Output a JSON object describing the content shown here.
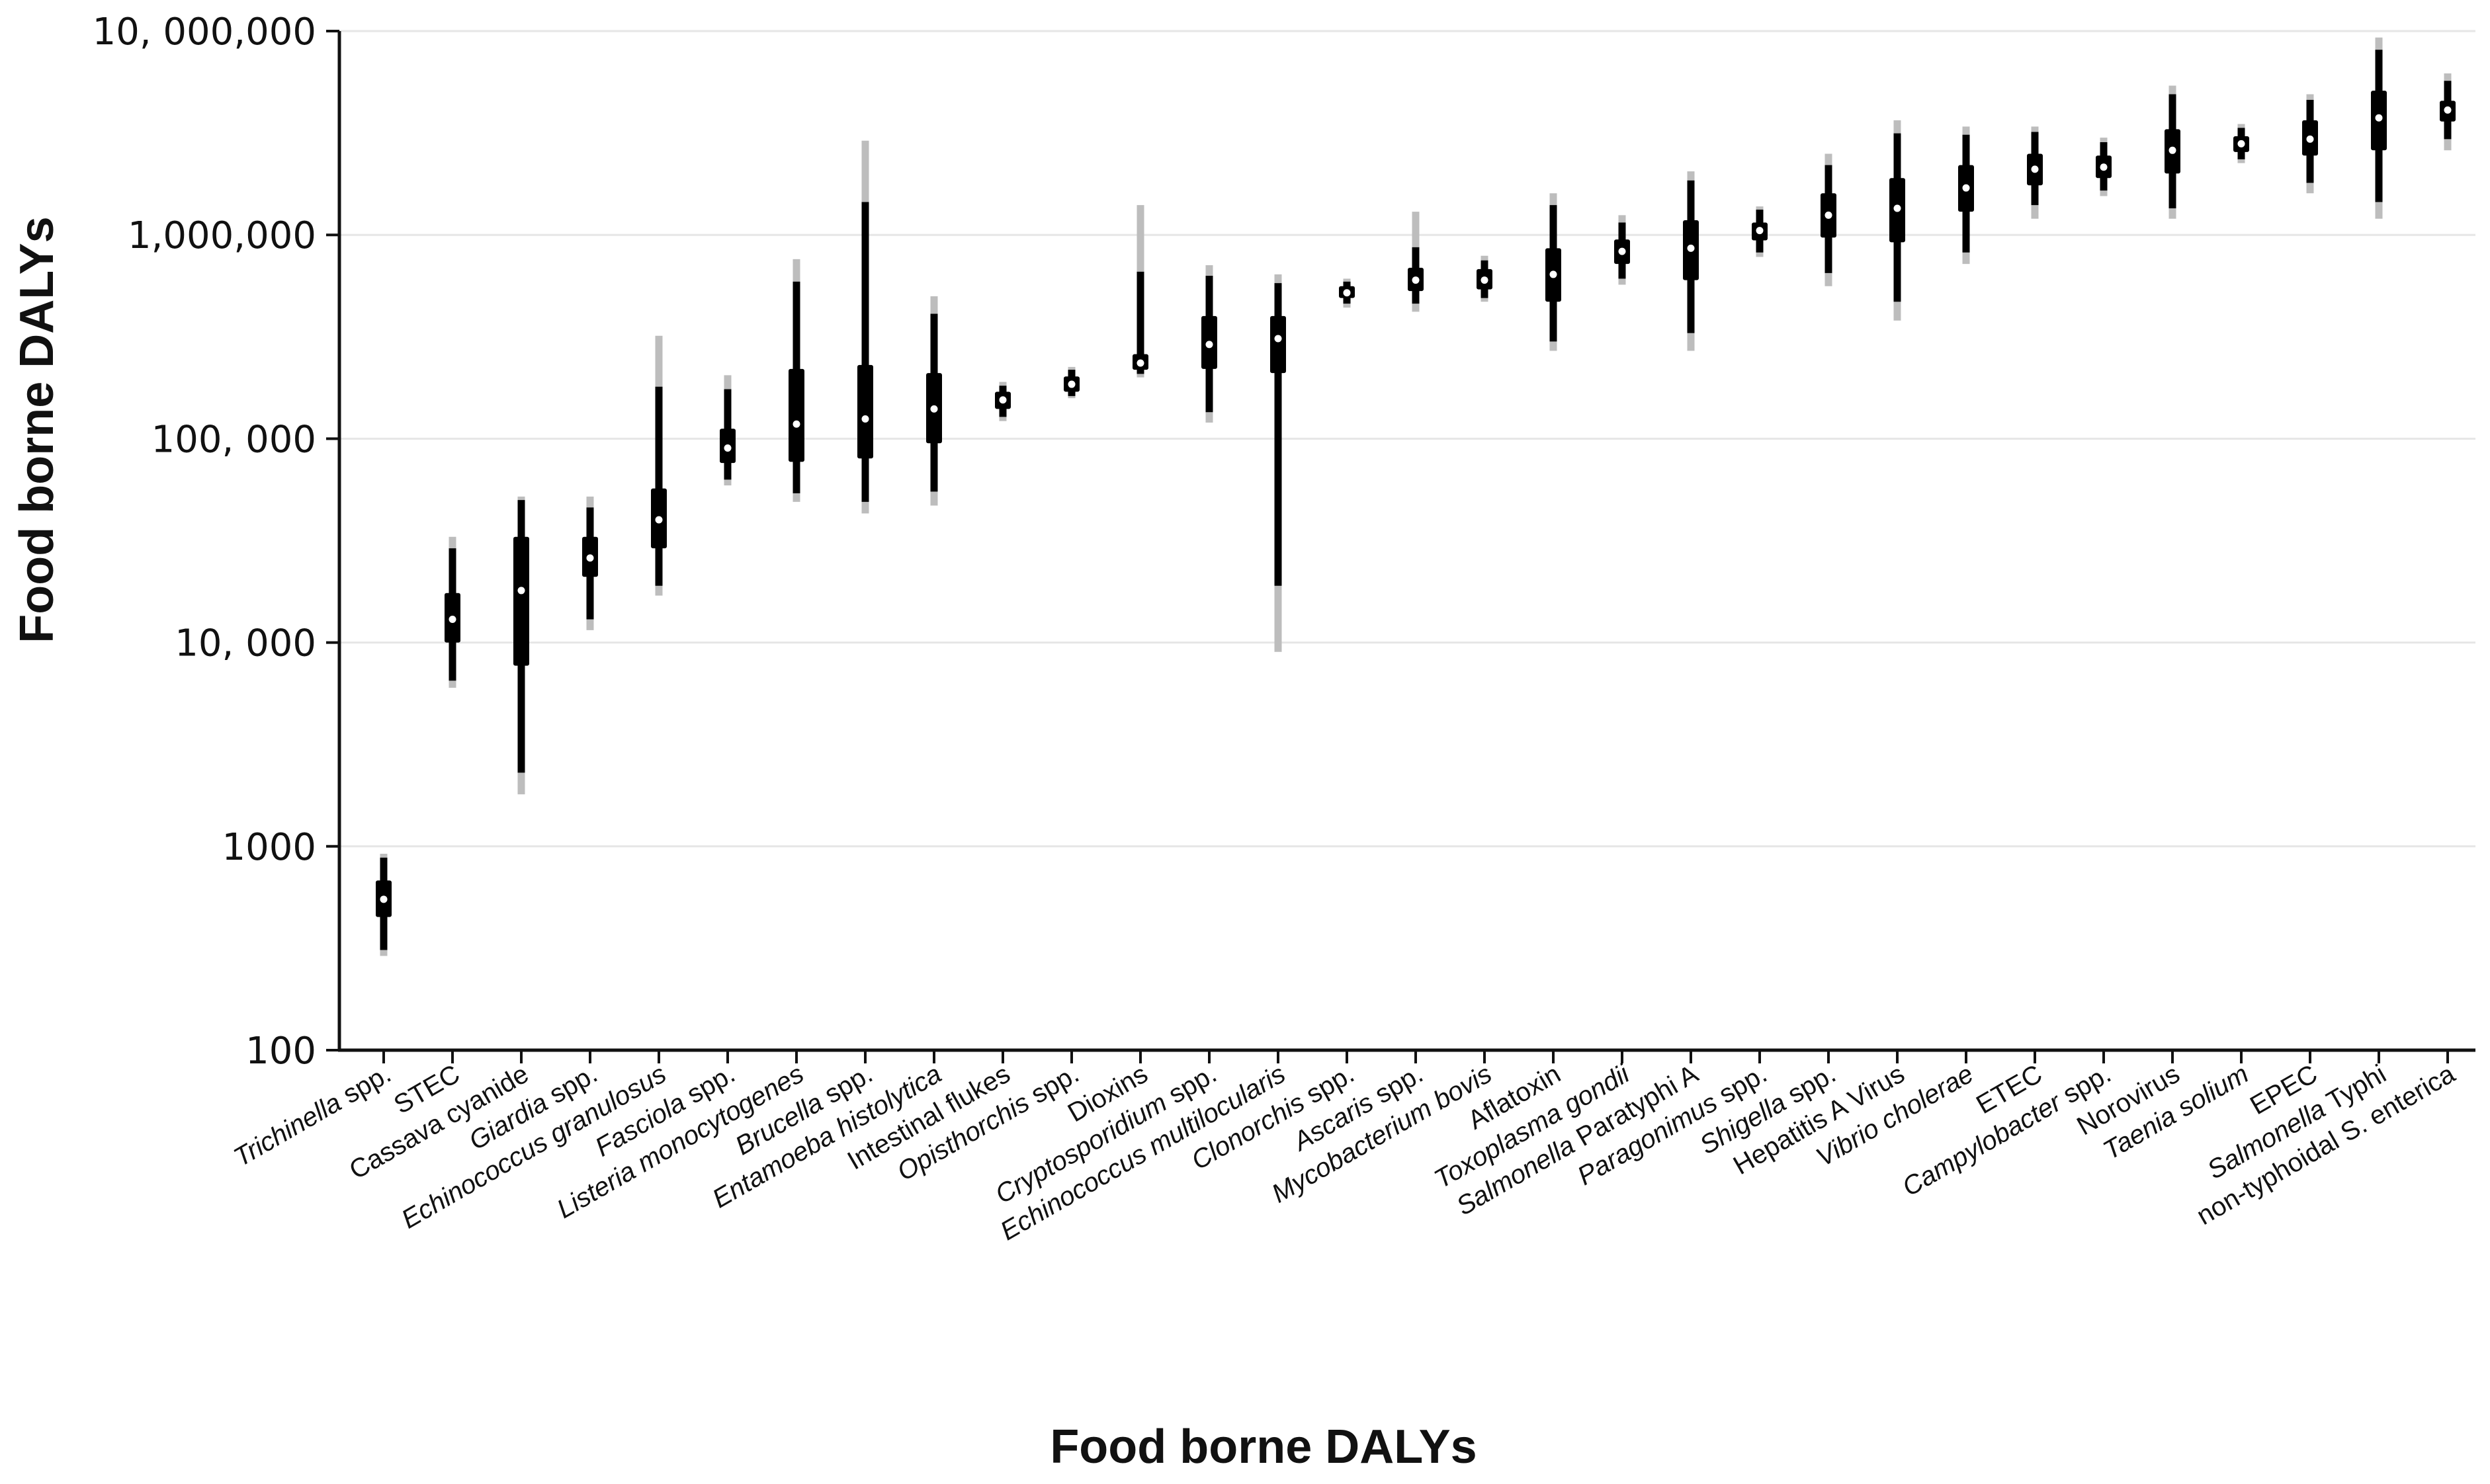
{
  "chart_data": {
    "type": "interval",
    "title": "",
    "xlabel": "Food borne DALYs",
    "ylabel": "Food borne DALYs",
    "yscale": "log",
    "ylim": [
      100,
      10000000
    ],
    "grid": "horizontal",
    "yticks": [
      {
        "value": 100,
        "label": "100"
      },
      {
        "value": 1000,
        "label": "1000"
      },
      {
        "value": 10000,
        "label": "10, 000"
      },
      {
        "value": 100000,
        "label": "100, 000"
      },
      {
        "value": 1000000,
        "label": "1,000,000"
      },
      {
        "value": 10000000,
        "label": "10, 000,000"
      }
    ],
    "categories": [
      {
        "label": "Trichinella spp.",
        "italic_prefix": "Trichinella",
        "suffix": " spp.",
        "median": 550,
        "q1": 450,
        "q3": 680,
        "i80lo": 310,
        "i80hi": 880,
        "i95lo": 290,
        "i95hi": 920
      },
      {
        "label": "STEC",
        "italic_prefix": "",
        "suffix": "STEC",
        "median": 13000,
        "q1": 10000,
        "q3": 17500,
        "i80lo": 6500,
        "i80hi": 29000,
        "i95lo": 6000,
        "i95hi": 33000
      },
      {
        "label": "Cassava cyanide",
        "italic_prefix": "",
        "suffix": "Cassava cyanide",
        "median": 18000,
        "q1": 7700,
        "q3": 33000,
        "i80lo": 2300,
        "i80hi": 50000,
        "i95lo": 1800,
        "i95hi": 52000
      },
      {
        "label": "Giardia spp.",
        "italic_prefix": "Giardia",
        "suffix": " spp.",
        "median": 26000,
        "q1": 21000,
        "q3": 33000,
        "i80lo": 13000,
        "i80hi": 46000,
        "i95lo": 11500,
        "i95hi": 52000
      },
      {
        "label": "Echinococcus granulosus",
        "italic_prefix": "Echinococcus granulosus",
        "suffix": "",
        "median": 40000,
        "q1": 29000,
        "q3": 57000,
        "i80lo": 19000,
        "i80hi": 180000,
        "i95lo": 17000,
        "i95hi": 320000
      },
      {
        "label": "Fasciola spp.",
        "italic_prefix": "Fasciola",
        "suffix": " spp.",
        "median": 90000,
        "q1": 76000,
        "q3": 112000,
        "i80lo": 63000,
        "i80hi": 175000,
        "i95lo": 59000,
        "i95hi": 205000
      },
      {
        "label": "Listeria monocytogenes",
        "italic_prefix": "Listeria monocytogenes",
        "suffix": "",
        "median": 118000,
        "q1": 77000,
        "q3": 220000,
        "i80lo": 54000,
        "i80hi": 590000,
        "i95lo": 49000,
        "i95hi": 760000
      },
      {
        "label": "Brucella spp.",
        "italic_prefix": "Brucella",
        "suffix": " spp.",
        "median": 125000,
        "q1": 80000,
        "q3": 230000,
        "i80lo": 49000,
        "i80hi": 1450000,
        "i95lo": 43000,
        "i95hi": 2900000
      },
      {
        "label": "Entamoeba histolytica",
        "italic_prefix": "Entamoeba histolytica",
        "suffix": "",
        "median": 140000,
        "q1": 95000,
        "q3": 210000,
        "i80lo": 55000,
        "i80hi": 410000,
        "i95lo": 47000,
        "i95hi": 500000
      },
      {
        "label": "Intestinal flukes",
        "italic_prefix": "",
        "suffix": "Intestinal flukes",
        "median": 155000,
        "q1": 140000,
        "q3": 170000,
        "i80lo": 128000,
        "i80hi": 182000,
        "i95lo": 122000,
        "i95hi": 190000
      },
      {
        "label": "Opisthorchis spp.",
        "italic_prefix": "Opisthorchis",
        "suffix": " spp.",
        "median": 185000,
        "q1": 170000,
        "q3": 202000,
        "i80lo": 162000,
        "i80hi": 218000,
        "i95lo": 158000,
        "i95hi": 225000
      },
      {
        "label": "Dioxins",
        "italic_prefix": "",
        "suffix": "Dioxins",
        "median": 235000,
        "q1": 218000,
        "q3": 260000,
        "i80lo": 208000,
        "i80hi": 660000,
        "i95lo": 200000,
        "i95hi": 1400000
      },
      {
        "label": "Cryptosporidium spp.",
        "italic_prefix": "Cryptosporidium",
        "suffix": " spp.",
        "median": 290000,
        "q1": 220000,
        "q3": 400000,
        "i80lo": 135000,
        "i80hi": 630000,
        "i95lo": 120000,
        "i95hi": 710000
      },
      {
        "label": "Echinococcus multilocularis",
        "italic_prefix": "Echinococcus multilocularis",
        "suffix": "",
        "median": 310000,
        "q1": 210000,
        "q3": 400000,
        "i80lo": 19000,
        "i80hi": 580000,
        "i95lo": 9000,
        "i95hi": 640000
      },
      {
        "label": "Clonorchis spp.",
        "italic_prefix": "Clonorchis",
        "suffix": " spp.",
        "median": 520000,
        "q1": 490000,
        "q3": 560000,
        "i80lo": 460000,
        "i80hi": 590000,
        "i95lo": 440000,
        "i95hi": 610000
      },
      {
        "label": "Ascaris spp.",
        "italic_prefix": "Ascaris",
        "suffix": " spp.",
        "median": 600000,
        "q1": 530000,
        "q3": 690000,
        "i80lo": 460000,
        "i80hi": 870000,
        "i95lo": 420000,
        "i95hi": 1300000
      },
      {
        "label": "Mycobacterium bovis",
        "italic_prefix": "Mycobacterium bovis",
        "suffix": "",
        "median": 600000,
        "q1": 540000,
        "q3": 680000,
        "i80lo": 490000,
        "i80hi": 750000,
        "i95lo": 470000,
        "i95hi": 790000
      },
      {
        "label": "Aflatoxin",
        "italic_prefix": "",
        "suffix": "Aflatoxin",
        "median": 640000,
        "q1": 470000,
        "q3": 860000,
        "i80lo": 300000,
        "i80hi": 1400000,
        "i95lo": 270000,
        "i95hi": 1600000
      },
      {
        "label": "Toxoplasma gondii",
        "italic_prefix": "Toxoplasma gondii",
        "suffix": "",
        "median": 830000,
        "q1": 720000,
        "q3": 950000,
        "i80lo": 610000,
        "i80hi": 1150000,
        "i95lo": 570000,
        "i95hi": 1250000
      },
      {
        "label": "Salmonella Paratyphi A",
        "italic_prefix": "Salmonella",
        "suffix": " Paratyphi A",
        "median": 860000,
        "q1": 600000,
        "q3": 1180000,
        "i80lo": 330000,
        "i80hi": 1850000,
        "i95lo": 270000,
        "i95hi": 2050000
      },
      {
        "label": "Paragonimus spp.",
        "italic_prefix": "Paragonimus",
        "suffix": " spp.",
        "median": 1050000,
        "q1": 940000,
        "q3": 1150000,
        "i80lo": 820000,
        "i80hi": 1330000,
        "i95lo": 780000,
        "i95hi": 1380000
      },
      {
        "label": "Shigella spp.",
        "italic_prefix": "Shigella",
        "suffix": " spp.",
        "median": 1250000,
        "q1": 970000,
        "q3": 1600000,
        "i80lo": 650000,
        "i80hi": 2200000,
        "i95lo": 560000,
        "i95hi": 2500000
      },
      {
        "label": "Hepatitis A Virus",
        "italic_prefix": "",
        "suffix": "Hepatitis A Virus",
        "median": 1350000,
        "q1": 920000,
        "q3": 1900000,
        "i80lo": 470000,
        "i80hi": 3150000,
        "i95lo": 380000,
        "i95hi": 3650000
      },
      {
        "label": "Vibrio cholerae",
        "italic_prefix": "Vibrio cholerae",
        "suffix": "",
        "median": 1700000,
        "q1": 1300000,
        "q3": 2200000,
        "i80lo": 820000,
        "i80hi": 3100000,
        "i95lo": 720000,
        "i95hi": 3400000
      },
      {
        "label": "ETEC",
        "italic_prefix": "",
        "suffix": "ETEC",
        "median": 2100000,
        "q1": 1750000,
        "q3": 2500000,
        "i80lo": 1400000,
        "i80hi": 3200000,
        "i95lo": 1200000,
        "i95hi": 3400000
      },
      {
        "label": "Campylobacter spp.",
        "italic_prefix": "Campylobacter",
        "suffix": " spp.",
        "median": 2150000,
        "q1": 1900000,
        "q3": 2450000,
        "i80lo": 1650000,
        "i80hi": 2850000,
        "i95lo": 1550000,
        "i95hi": 3000000
      },
      {
        "label": "Norovirus",
        "italic_prefix": "",
        "suffix": "Norovirus",
        "median": 2600000,
        "q1": 2000000,
        "q3": 3300000,
        "i80lo": 1350000,
        "i80hi": 4900000,
        "i95lo": 1200000,
        "i95hi": 5400000
      },
      {
        "label": "Taenia solium",
        "italic_prefix": "Taenia solium",
        "suffix": "",
        "median": 2800000,
        "q1": 2550000,
        "q3": 3050000,
        "i80lo": 2350000,
        "i80hi": 3350000,
        "i95lo": 2250000,
        "i95hi": 3500000
      },
      {
        "label": "EPEC",
        "italic_prefix": "",
        "suffix": "EPEC",
        "median": 2950000,
        "q1": 2450000,
        "q3": 3650000,
        "i80lo": 1800000,
        "i80hi": 4600000,
        "i95lo": 1600000,
        "i95hi": 4900000
      },
      {
        "label": "Salmonella Typhi",
        "italic_prefix": "Salmonella",
        "suffix": " Typhi",
        "median": 3750000,
        "q1": 2600000,
        "q3": 5100000,
        "i80lo": 1450000,
        "i80hi": 8100000,
        "i95lo": 1200000,
        "i95hi": 9300000
      },
      {
        "label": "non-typhoidal S. enterica",
        "italic_prefix": "",
        "suffix": "non-typhoidal  S. enterica",
        "median": 4100000,
        "q1": 3600000,
        "q3": 4550000,
        "i80lo": 2950000,
        "i80hi": 5700000,
        "i95lo": 2600000,
        "i95hi": 6200000
      }
    ]
  }
}
